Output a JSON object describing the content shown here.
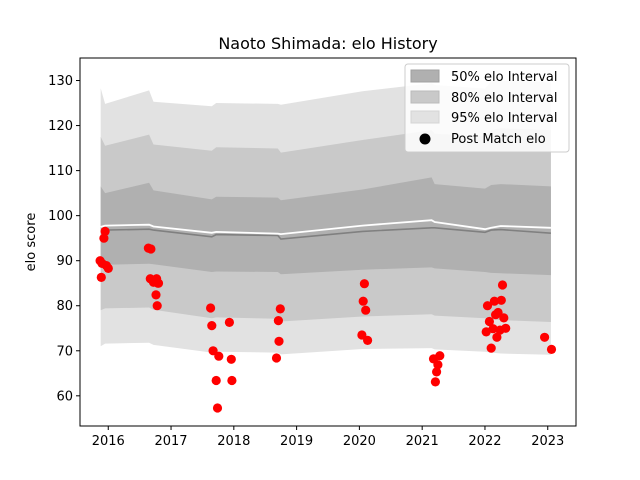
{
  "chart_data": {
    "type": "area",
    "title": "Naoto Shimada: elo History",
    "xlabel": "",
    "ylabel": "elo score",
    "xlim": [
      2015.55,
      2023.45
    ],
    "ylim": [
      53.3,
      135.0
    ],
    "x_ticks": [
      2016,
      2017,
      2018,
      2019,
      2020,
      2021,
      2022,
      2023
    ],
    "x_tick_labels": [
      "2016",
      "2017",
      "2018",
      "2019",
      "2020",
      "2021",
      "2022",
      "2023"
    ],
    "y_ticks": [
      60,
      70,
      80,
      90,
      100,
      110,
      120,
      130
    ],
    "y_tick_labels": [
      "60",
      "70",
      "80",
      "90",
      "100",
      "110",
      "120",
      "130"
    ],
    "legend_position": "top-right",
    "grid": false,
    "colors": {
      "band50": "#b0b0b0",
      "band80": "#c9c9c9",
      "band95": "#e2e2e2",
      "mean_line": "#808080",
      "post_line": "#ffffff",
      "points": "#ff0000"
    },
    "intervals": {
      "x": [
        2015.88,
        2015.95,
        2016.65,
        2016.72,
        2017.65,
        2017.72,
        2018.7,
        2018.75,
        2020.05,
        2021.15,
        2021.2,
        2022.0,
        2022.1,
        2022.25,
        2023.05
      ],
      "mean": [
        96.5,
        96.8,
        97.0,
        96.8,
        95.3,
        95.8,
        95.6,
        94.8,
        96.5,
        97.3,
        97.3,
        96.3,
        96.8,
        96.9,
        96.1
      ],
      "post": [
        97.5,
        97.8,
        98.0,
        97.6,
        96.2,
        96.4,
        96.0,
        95.9,
        97.8,
        99.0,
        98.6,
        97.0,
        97.3,
        97.7,
        97.3
      ],
      "lo50": [
        89.0,
        89.1,
        89.3,
        89.2,
        87.5,
        87.6,
        87.5,
        87.0,
        88.0,
        88.5,
        88.3,
        87.5,
        87.3,
        87.2,
        86.8
      ],
      "hi50": [
        106.5,
        105.0,
        107.3,
        105.6,
        103.6,
        104.2,
        104.0,
        103.4,
        105.8,
        108.5,
        107.0,
        106.0,
        106.8,
        107.0,
        106.5
      ],
      "lo80": [
        79.0,
        79.4,
        79.6,
        79.1,
        77.2,
        77.4,
        77.1,
        76.5,
        77.6,
        78.1,
        77.8,
        77.2,
        77.0,
        76.8,
        76.4
      ],
      "hi80": [
        117.5,
        115.5,
        118.0,
        115.8,
        114.4,
        115.2,
        114.9,
        114.0,
        116.8,
        119.0,
        118.2,
        117.6,
        119.0,
        119.4,
        119.0
      ],
      "lo95": [
        71.0,
        71.6,
        71.8,
        71.3,
        69.6,
        69.8,
        69.6,
        69.2,
        70.4,
        70.6,
        70.3,
        69.8,
        69.6,
        69.4,
        69.1
      ],
      "hi95": [
        128.3,
        124.8,
        127.8,
        125.3,
        124.3,
        125.0,
        124.8,
        124.6,
        127.6,
        129.4,
        129.0,
        128.2,
        129.8,
        130.0,
        129.6
      ]
    },
    "points": {
      "x": [
        2015.87,
        2015.89,
        2015.9,
        2015.93,
        2015.95,
        2015.97,
        2016.0,
        2016.64,
        2016.67,
        2016.68,
        2016.72,
        2016.76,
        2016.77,
        2016.78,
        2016.79,
        2016.8,
        2017.63,
        2017.65,
        2017.67,
        2017.72,
        2017.74,
        2017.76,
        2017.93,
        2017.96,
        2017.97,
        2018.68,
        2018.71,
        2018.72,
        2018.74,
        2020.04,
        2020.06,
        2020.08,
        2020.1,
        2020.13,
        2021.18,
        2021.21,
        2021.23,
        2021.25,
        2021.28,
        2022.02,
        2022.04,
        2022.07,
        2022.1,
        2022.13,
        2022.15,
        2022.17,
        2022.19,
        2022.21,
        2022.24,
        2022.26,
        2022.28,
        2022.3,
        2022.33,
        2022.95,
        2023.06
      ],
      "y": [
        90.0,
        86.3,
        89.4,
        95.0,
        96.5,
        88.9,
        88.3,
        92.8,
        86.0,
        92.6,
        85.2,
        82.4,
        86.0,
        80.0,
        85.0,
        85.0,
        79.5,
        75.6,
        70.0,
        63.4,
        57.3,
        68.8,
        76.3,
        68.1,
        63.4,
        68.4,
        76.7,
        72.1,
        79.3,
        73.5,
        81.0,
        84.9,
        79.0,
        72.3,
        68.2,
        63.1,
        65.3,
        66.9,
        68.9,
        74.2,
        80.0,
        76.5,
        70.6,
        74.9,
        81.0,
        78.0,
        73.0,
        78.5,
        74.6,
        81.2,
        84.6,
        77.3,
        75.0,
        73.0,
        70.3
      ]
    }
  },
  "legend": {
    "band50": "50% elo Interval",
    "band80": "80% elo Interval",
    "band95": "95% elo Interval",
    "points": "Post Match elo"
  }
}
